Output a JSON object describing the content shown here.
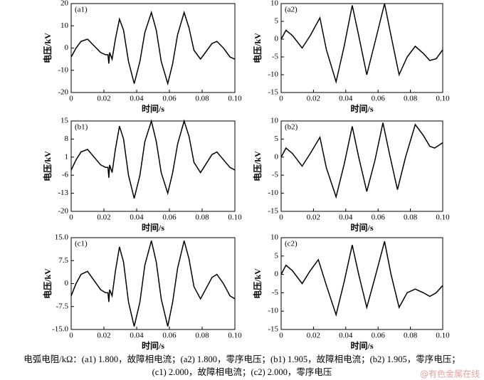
{
  "chart_data": [
    {
      "type": "line",
      "title": "(a1)",
      "xlabel": "时间/s",
      "ylabel": "电压/kV",
      "x": [
        0,
        0.003,
        0.006,
        0.01,
        0.014,
        0.018,
        0.021,
        0.0225,
        0.023,
        0.0235,
        0.025,
        0.027,
        0.0295,
        0.032,
        0.035,
        0.0385,
        0.042,
        0.045,
        0.049,
        0.052,
        0.055,
        0.059,
        0.062,
        0.065,
        0.069,
        0.072,
        0.075,
        0.079,
        0.083,
        0.086,
        0.089,
        0.093,
        0.097,
        0.1
      ],
      "values": [
        -4,
        0,
        3,
        4,
        1,
        -2,
        -3,
        -3,
        -7,
        -2,
        -5,
        4,
        13,
        8,
        -6,
        -16,
        -6,
        7,
        16,
        8,
        -6,
        -16,
        -7,
        6,
        16,
        9,
        -1,
        -5,
        -1,
        2,
        3,
        0,
        -4,
        -5
      ],
      "color": "#000000",
      "xlim": [
        0,
        0.1
      ],
      "xticks": [
        0,
        0.02,
        0.04,
        0.06,
        0.08,
        {
          "value": 0.1,
          "label": "0.10"
        }
      ],
      "ylim": [
        -20,
        20
      ],
      "yticks": [
        -20,
        -10,
        0,
        10,
        20
      ]
    },
    {
      "type": "line",
      "title": "(a2)",
      "xlabel": "时间/s",
      "ylabel": "电压/kV",
      "x": [
        0,
        0.003,
        0.007,
        0.013,
        0.018,
        0.024,
        0.028,
        0.034,
        0.039,
        0.044,
        0.048,
        0.053,
        0.058,
        0.064,
        0.068,
        0.073,
        0.078,
        0.083,
        0.088,
        0.092,
        0.096,
        0.1
      ],
      "values": [
        0,
        2.5,
        1,
        -2.5,
        1,
        6,
        -3,
        -12,
        -2,
        9.5,
        1,
        -10,
        -1,
        10,
        1,
        -10,
        -5,
        -2,
        -4,
        -6,
        -5.5,
        -3
      ],
      "color": "#000000",
      "xlim": [
        0,
        0.1
      ],
      "xticks": [
        0,
        0.02,
        0.04,
        0.06,
        0.08,
        {
          "value": 0.1,
          "label": "0.10"
        }
      ],
      "ylim": [
        -15,
        10
      ],
      "yticks": [
        -15,
        -10,
        -5,
        0,
        5,
        10
      ]
    },
    {
      "type": "line",
      "title": "(b1)",
      "xlabel": "时间/s",
      "ylabel": "电压/kV",
      "x": [
        0,
        0.003,
        0.006,
        0.01,
        0.014,
        0.018,
        0.021,
        0.0225,
        0.023,
        0.0235,
        0.025,
        0.027,
        0.0295,
        0.032,
        0.035,
        0.0385,
        0.042,
        0.045,
        0.049,
        0.052,
        0.055,
        0.059,
        0.062,
        0.065,
        0.069,
        0.072,
        0.075,
        0.079,
        0.083,
        0.086,
        0.089,
        0.093,
        0.097,
        0.1
      ],
      "values": [
        -4,
        0,
        3,
        4,
        1,
        -2,
        -3,
        -3,
        -7,
        -2,
        -5,
        4,
        13,
        8,
        -6,
        -15,
        -6,
        7,
        15,
        7,
        -5,
        -13,
        -5,
        6,
        15,
        9,
        -1,
        -5,
        -1,
        2,
        3,
        0,
        -3,
        -4
      ],
      "color": "#000000",
      "xlim": [
        0,
        0.1
      ],
      "xticks": [
        0,
        0.02,
        0.04,
        0.06,
        0.08,
        {
          "value": 0.1,
          "label": "0.10"
        }
      ],
      "ylim": [
        -20,
        15
      ],
      "yticks": [
        -20,
        -13,
        -6,
        1,
        8,
        15
      ]
    },
    {
      "type": "line",
      "title": "(b2)",
      "xlabel": "时间/s",
      "ylabel": "电压/kV",
      "x": [
        0,
        0.003,
        0.007,
        0.013,
        0.018,
        0.024,
        0.028,
        0.034,
        0.039,
        0.044,
        0.048,
        0.053,
        0.058,
        0.063,
        0.067,
        0.072,
        0.077,
        0.083,
        0.088,
        0.092,
        0.095,
        0.1
      ],
      "values": [
        0,
        2.5,
        1,
        -2.5,
        1,
        5.5,
        -3,
        -11,
        -2,
        8.5,
        0,
        -9.5,
        -1,
        9.5,
        1,
        -9,
        0,
        9,
        6,
        3,
        2.5,
        4
      ],
      "color": "#000000",
      "xlim": [
        0,
        0.1
      ],
      "xticks": [
        0,
        0.02,
        0.04,
        0.06,
        0.08,
        {
          "value": 0.1,
          "label": "0.10"
        }
      ],
      "ylim": [
        -15,
        10
      ],
      "yticks": [
        -15,
        -10,
        -5,
        0,
        5,
        10
      ]
    },
    {
      "type": "line",
      "title": "(c1)",
      "xlabel": "时间/s",
      "ylabel": "电压/kV",
      "x": [
        0,
        0.003,
        0.006,
        0.01,
        0.014,
        0.018,
        0.021,
        0.0225,
        0.023,
        0.0235,
        0.025,
        0.027,
        0.0295,
        0.032,
        0.035,
        0.0385,
        0.042,
        0.045,
        0.049,
        0.052,
        0.055,
        0.059,
        0.062,
        0.065,
        0.069,
        0.072,
        0.075,
        0.079,
        0.083,
        0.086,
        0.089,
        0.093,
        0.097,
        0.1
      ],
      "values": [
        -4,
        0,
        3,
        4,
        1,
        -2,
        -3,
        -3,
        -6,
        -2,
        -4,
        4,
        12,
        7,
        -6,
        -14,
        -6,
        6,
        14,
        7,
        -5,
        -14,
        -6,
        5,
        14,
        8,
        -1,
        -5,
        -1,
        2,
        3,
        0,
        -4,
        -5
      ],
      "color": "#000000",
      "xlim": [
        0,
        0.1
      ],
      "xticks": [
        0,
        0.02,
        0.04,
        0.06,
        0.08,
        {
          "value": 0.1,
          "label": "0.10"
        }
      ],
      "ylim": [
        -15,
        15
      ],
      "yticks": [
        {
          "value": -15,
          "label": "-15.0"
        },
        -7.5,
        0,
        7.5,
        {
          "value": 15,
          "label": "15.0"
        }
      ]
    },
    {
      "type": "line",
      "title": "(c2)",
      "xlabel": "时间/s",
      "ylabel": "电压/kV",
      "x": [
        0,
        0.003,
        0.007,
        0.013,
        0.018,
        0.023,
        0.028,
        0.034,
        0.039,
        0.044,
        0.048,
        0.053,
        0.058,
        0.064,
        0.068,
        0.073,
        0.078,
        0.083,
        0.088,
        0.092,
        0.096,
        0.1
      ],
      "values": [
        0,
        2.5,
        1,
        -2.5,
        1,
        4,
        -3,
        -11,
        -2,
        8,
        0,
        -9,
        -1,
        9,
        0,
        -9,
        -5,
        -4,
        -5,
        -6,
        -5,
        -3
      ],
      "color": "#000000",
      "xlim": [
        0,
        0.1
      ],
      "xticks": [
        0,
        0.02,
        0.04,
        0.06,
        0.08,
        {
          "value": 0.1,
          "label": "0.10"
        }
      ],
      "ylim": [
        -15,
        10
      ],
      "yticks": [
        -15,
        -10,
        -5,
        0,
        5,
        10
      ]
    }
  ],
  "caption": [
    "电弧电阻/kΩ：(a1) 1.800，故障相电流；(a2) 1.800，零序电压；(b1) 1.905，故障相电流；(b2) 1.905，零序电压；",
    "(c1) 2.000，故障相电流；(c2) 2.000，零序电压"
  ],
  "watermark": "@有色金属在线"
}
